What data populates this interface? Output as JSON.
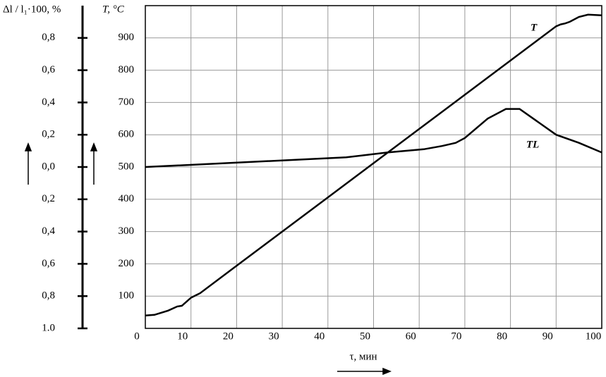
{
  "chart_data": {
    "type": "line",
    "x_label": "τ, мин",
    "y_label": "T, °C",
    "y2_label": "Δl / l₁·100, %",
    "xlim": [
      0,
      100
    ],
    "xticks": [
      0,
      10,
      20,
      30,
      40,
      50,
      60,
      70,
      80,
      90,
      100
    ],
    "ylim": [
      0,
      1000
    ],
    "yticks": [
      100,
      200,
      300,
      400,
      500,
      600,
      700,
      800,
      900
    ],
    "y2lim": [
      -1.0,
      1.0
    ],
    "y2ticks": [
      {
        "value": 0.8,
        "label": "0,8"
      },
      {
        "value": 0.6,
        "label": "0,6"
      },
      {
        "value": 0.4,
        "label": "0,4"
      },
      {
        "value": 0.2,
        "label": "0,2"
      },
      {
        "value": 0.0,
        "label": "0,0"
      },
      {
        "value": -0.2,
        "label": "0,2"
      },
      {
        "value": -0.4,
        "label": "0,4"
      },
      {
        "value": -0.6,
        "label": "0,6"
      },
      {
        "value": -0.8,
        "label": "0,8"
      },
      {
        "value": -1.0,
        "label": "1.0"
      }
    ],
    "grid": true,
    "series": [
      {
        "name": "T",
        "color": "#000000",
        "axis": "y",
        "x": [
          0,
          2,
          5,
          7,
          8,
          10,
          11,
          12,
          20,
          40,
          60,
          80,
          90,
          91,
          92,
          93,
          95,
          97,
          100
        ],
        "values": [
          40,
          42,
          55,
          68,
          70,
          95,
          102,
          109,
          194,
          406,
          618,
          830,
          936,
          942,
          945,
          950,
          965,
          972,
          970
        ]
      },
      {
        "name": "TL",
        "color": "#000000",
        "axis": "y2",
        "x": [
          0,
          44,
          53,
          61,
          65,
          68,
          70,
          75,
          79,
          82,
          85,
          90,
          95,
          100
        ],
        "values": [
          0.0,
          0.06,
          0.09,
          0.11,
          0.13,
          0.15,
          0.18,
          0.3,
          0.36,
          0.36,
          0.3,
          0.2,
          0.15,
          0.09
        ]
      }
    ]
  }
}
